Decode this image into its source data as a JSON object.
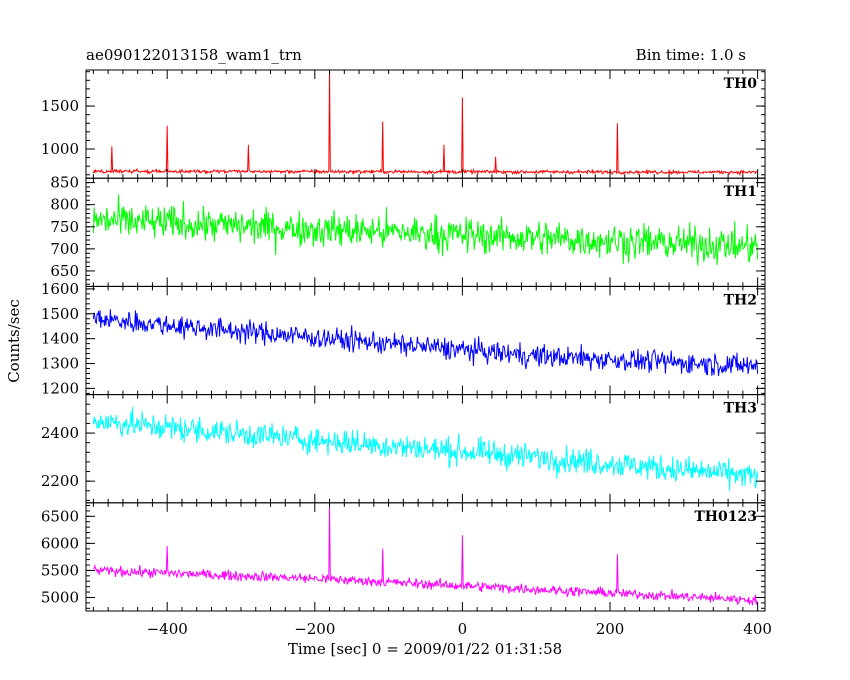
{
  "header": {
    "title": "ae090122013158_wam1_trn",
    "bin_time": "Bin time: 1.0 s"
  },
  "xlabel": "Time [sec] 0 = 2009/01/22 01:31:58",
  "ylabel": "Counts/sec",
  "chart_data": {
    "type": "line",
    "x_range": [
      -510,
      410
    ],
    "x_ticks": [
      -400,
      -200,
      0,
      200,
      400
    ],
    "x_tick_labels": [
      "−400",
      "−200",
      "0",
      "200",
      "400"
    ],
    "panels": [
      {
        "name": "TH0",
        "color": "#ff0000",
        "ylim": [
          660,
          1920
        ],
        "y_ticks": [
          1000,
          1500
        ],
        "y_tick_labels": [
          "1000",
          "1500"
        ],
        "trend": [
          [
            -500,
            740
          ],
          [
            400,
            730
          ]
        ],
        "noise": 20,
        "spikes": [
          [
            -475,
            1030
          ],
          [
            -400,
            1270
          ],
          [
            -290,
            1050
          ],
          [
            -180,
            1920
          ],
          [
            -108,
            1320
          ],
          [
            -25,
            1050
          ],
          [
            0,
            1600
          ],
          [
            45,
            910
          ],
          [
            210,
            1300
          ]
        ]
      },
      {
        "name": "TH1",
        "color": "#00ff00",
        "ylim": [
          615,
          860
        ],
        "y_ticks": [
          650,
          700,
          750,
          800,
          850
        ],
        "y_tick_labels": [
          "650",
          "700",
          "750",
          "800",
          "850"
        ],
        "trend": [
          [
            -500,
            765
          ],
          [
            400,
            705
          ]
        ],
        "noise": 40,
        "spikes": []
      },
      {
        "name": "TH2",
        "color": "#0000ff",
        "ylim": [
          1175,
          1610
        ],
        "y_ticks": [
          1200,
          1300,
          1400,
          1500,
          1600
        ],
        "y_tick_labels": [
          "1200",
          "1300",
          "1400",
          "1500",
          "1600"
        ],
        "trend": [
          [
            -500,
            1480
          ],
          [
            -300,
            1430
          ],
          [
            -100,
            1380
          ],
          [
            100,
            1330
          ],
          [
            400,
            1290
          ]
        ],
        "noise": 45,
        "spikes": []
      },
      {
        "name": "TH3",
        "color": "#00ffff",
        "ylim": [
          2110,
          2560
        ],
        "y_ticks": [
          2200,
          2400
        ],
        "y_tick_labels": [
          "2200",
          "2400"
        ],
        "trend": [
          [
            -500,
            2450
          ],
          [
            -200,
            2370
          ],
          [
            100,
            2300
          ],
          [
            400,
            2220
          ]
        ],
        "noise": 55,
        "spikes": []
      },
      {
        "name": "TH0123",
        "color": "#ff00ff",
        "ylim": [
          4750,
          6750
        ],
        "y_ticks": [
          5000,
          5500,
          6000,
          6500
        ],
        "y_tick_labels": [
          "5000",
          "5500",
          "6000",
          "6500"
        ],
        "trend": [
          [
            -500,
            5500
          ],
          [
            -200,
            5350
          ],
          [
            100,
            5150
          ],
          [
            400,
            4950
          ]
        ],
        "noise": 90,
        "spikes": [
          [
            -400,
            5950
          ],
          [
            -180,
            6700
          ],
          [
            -108,
            5900
          ],
          [
            0,
            6150
          ],
          [
            210,
            5800
          ]
        ]
      }
    ]
  }
}
